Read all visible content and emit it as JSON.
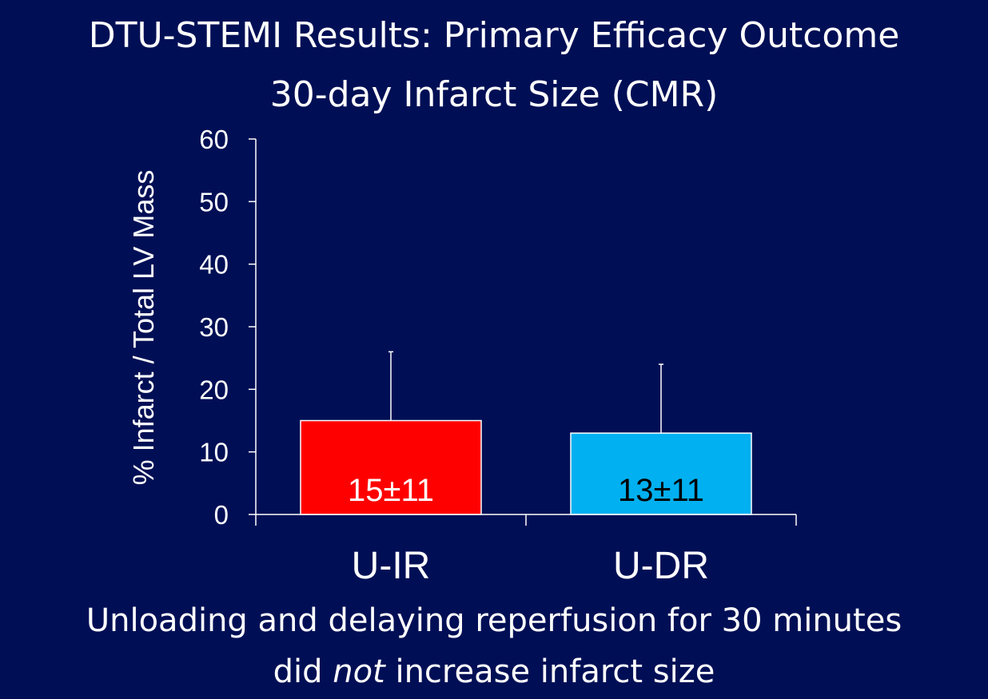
{
  "slide": {
    "title_line1": "DTU-STEMI Results: Primary Efficacy Outcome",
    "title_line2": "30-day Infarct Size (CMR)",
    "caption_line1": "Unloading and delaying reperfusion for 30 minutes",
    "caption_line2_before": "did ",
    "caption_line2_emph": "not",
    "caption_line2_after": " increase infarct size"
  },
  "colors": {
    "background": "#000f55",
    "axis": "#ffffff",
    "u_ir_bar": "#ff0000",
    "u_dr_bar": "#00b0f0"
  },
  "chart_data": {
    "type": "bar",
    "title": "30-day Infarct Size (CMR)",
    "xlabel": "",
    "ylabel": "% Infarct / Total LV Mass",
    "ylim": [
      0,
      60
    ],
    "yticks": [
      0,
      10,
      20,
      30,
      40,
      50,
      60
    ],
    "grid": false,
    "categories": [
      "U-IR",
      "U-DR"
    ],
    "values": [
      15,
      13
    ],
    "error_plus": [
      11,
      11
    ],
    "data_labels": [
      "15±11",
      "13±11"
    ],
    "bar_colors": [
      "#ff0000",
      "#00b0f0"
    ],
    "label_colors": [
      "#ffffff",
      "#000000"
    ]
  }
}
